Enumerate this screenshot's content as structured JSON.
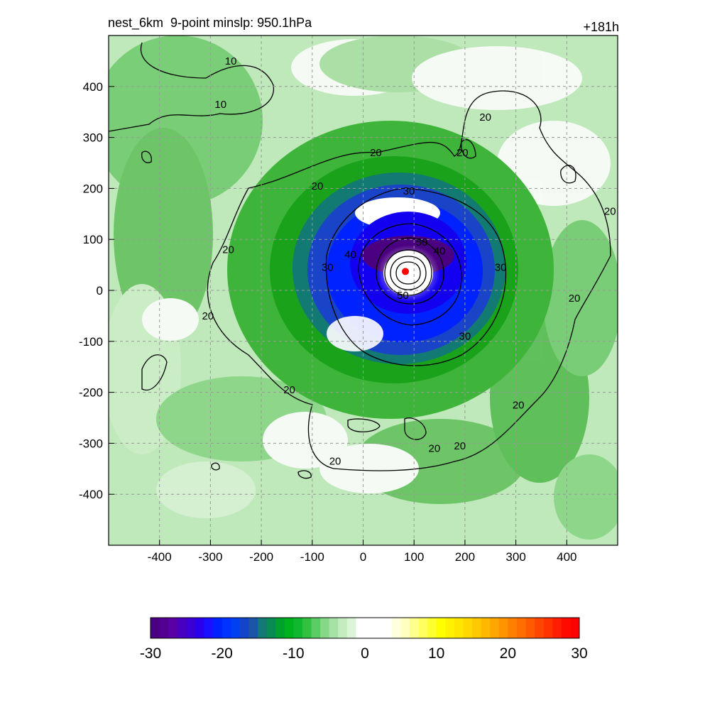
{
  "header": {
    "title": "nest_6km  9-point minslp: 950.1hPa",
    "time_label": "+181h"
  },
  "chart_data": {
    "type": "contour_map",
    "xlim": [
      -500,
      500
    ],
    "ylim": [
      -500,
      500
    ],
    "x_ticks": [
      -400,
      -300,
      -200,
      -100,
      0,
      100,
      200,
      300,
      400
    ],
    "y_ticks": [
      -400,
      -300,
      -200,
      -100,
      0,
      100,
      200,
      300,
      400
    ],
    "grid": true,
    "center_marker": {
      "x": 83,
      "y": 37,
      "color": "#ff0000"
    },
    "contour_levels": [
      10,
      20,
      30,
      40,
      50
    ],
    "contour_labels": [
      {
        "text": "10",
        "x": -260,
        "y": 450
      },
      {
        "text": "10",
        "x": -280,
        "y": 365
      },
      {
        "text": "20",
        "x": 25,
        "y": 270
      },
      {
        "text": "20",
        "x": 240,
        "y": 340
      },
      {
        "text": "20",
        "x": 195,
        "y": 270
      },
      {
        "text": "20",
        "x": -90,
        "y": 205
      },
      {
        "text": "20",
        "x": -265,
        "y": 80
      },
      {
        "text": "20",
        "x": -305,
        "y": -50
      },
      {
        "text": "20",
        "x": -145,
        "y": -195
      },
      {
        "text": "20",
        "x": -55,
        "y": -335
      },
      {
        "text": "20",
        "x": 140,
        "y": -310
      },
      {
        "text": "20",
        "x": 190,
        "y": -305
      },
      {
        "text": "20",
        "x": 305,
        "y": -225
      },
      {
        "text": "20",
        "x": 415,
        "y": -15
      },
      {
        "text": "20",
        "x": 485,
        "y": 155
      },
      {
        "text": "30",
        "x": 90,
        "y": 195
      },
      {
        "text": "30",
        "x": -70,
        "y": 45
      },
      {
        "text": "30",
        "x": 270,
        "y": 45
      },
      {
        "text": "30",
        "x": 200,
        "y": -90
      },
      {
        "text": "40",
        "x": -25,
        "y": 70
      },
      {
        "text": "40",
        "x": 150,
        "y": 77
      },
      {
        "text": "50",
        "x": 115,
        "y": 95
      },
      {
        "text": "50",
        "x": 78,
        "y": -10
      }
    ],
    "colorbar": {
      "min": -30,
      "max": 30,
      "ticks": [
        -30,
        -20,
        -10,
        0,
        10,
        20,
        30
      ],
      "colors": [
        "#4b0082",
        "#52008f",
        "#5a00a4",
        "#4a00c0",
        "#3a00d6",
        "#2a00ec",
        "#1810ff",
        "#0022ff",
        "#0033ff",
        "#0040f0",
        "#1444c8",
        "#1a55a8",
        "#127a72",
        "#0a8a55",
        "#00a22e",
        "#00b21c",
        "#10b830",
        "#32c040",
        "#5ccc64",
        "#84d886",
        "#a6e2a6",
        "#c4ecc0",
        "#dcf4d8",
        "#ffffff",
        "#ffffff",
        "#ffffff",
        "#ffffff",
        "#ffffe0",
        "#ffffc0",
        "#ffff90",
        "#ffff60",
        "#ffff30",
        "#ffff00",
        "#fff200",
        "#ffe600",
        "#ffd800",
        "#ffc800",
        "#ffb800",
        "#ffa600",
        "#ff9400",
        "#ff8000",
        "#ff6e00",
        "#ff5a00",
        "#ff4600",
        "#ff3200",
        "#ff1e00",
        "#ff0a00",
        "#ff0000"
      ]
    }
  }
}
